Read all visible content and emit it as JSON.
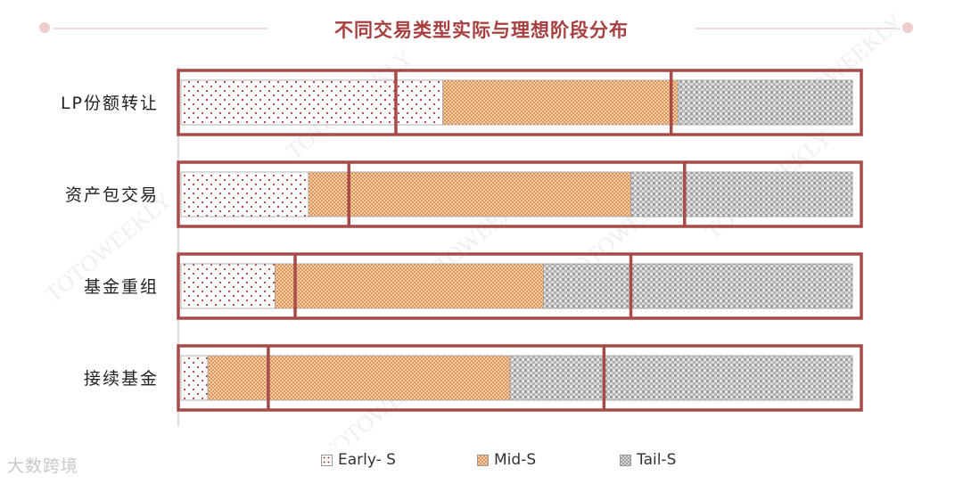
{
  "header": {
    "title": "不同交易类型实际与理想阶段分布"
  },
  "chart_data": {
    "type": "bar",
    "stacked": true,
    "orientation": "horizontal",
    "title": "不同交易类型实际与理想阶段分布",
    "categories": [
      "LP份额转让",
      "资产包交易",
      "基金重组",
      "接续基金"
    ],
    "xlim": [
      0,
      100
    ],
    "series": [
      {
        "name": "Early- S",
        "values": [
          39,
          19,
          14,
          4
        ],
        "pattern": "dots",
        "color": "#b13c3c"
      },
      {
        "name": "Mid-S",
        "values": [
          35,
          48,
          40,
          45
        ],
        "pattern": "checker",
        "color": "#e0a06c"
      },
      {
        "name": "Tail-S",
        "values": [
          26,
          33,
          46,
          51
        ],
        "pattern": "grid",
        "color": "#bfbfbf"
      }
    ],
    "ideal_stage_boundaries": [
      {
        "category": "LP份额转让",
        "early_end": 32,
        "mid_end": 73
      },
      {
        "category": "资产包交易",
        "early_end": 25,
        "mid_end": 75
      },
      {
        "category": "基金重组",
        "early_end": 17,
        "mid_end": 67
      },
      {
        "category": "接续基金",
        "early_end": 13,
        "mid_end": 63
      }
    ],
    "legend_position": "bottom",
    "grid": false
  },
  "watermark": {
    "logo_text": "大数跨境",
    "repeat_text": "TOTOWEEKLY"
  }
}
